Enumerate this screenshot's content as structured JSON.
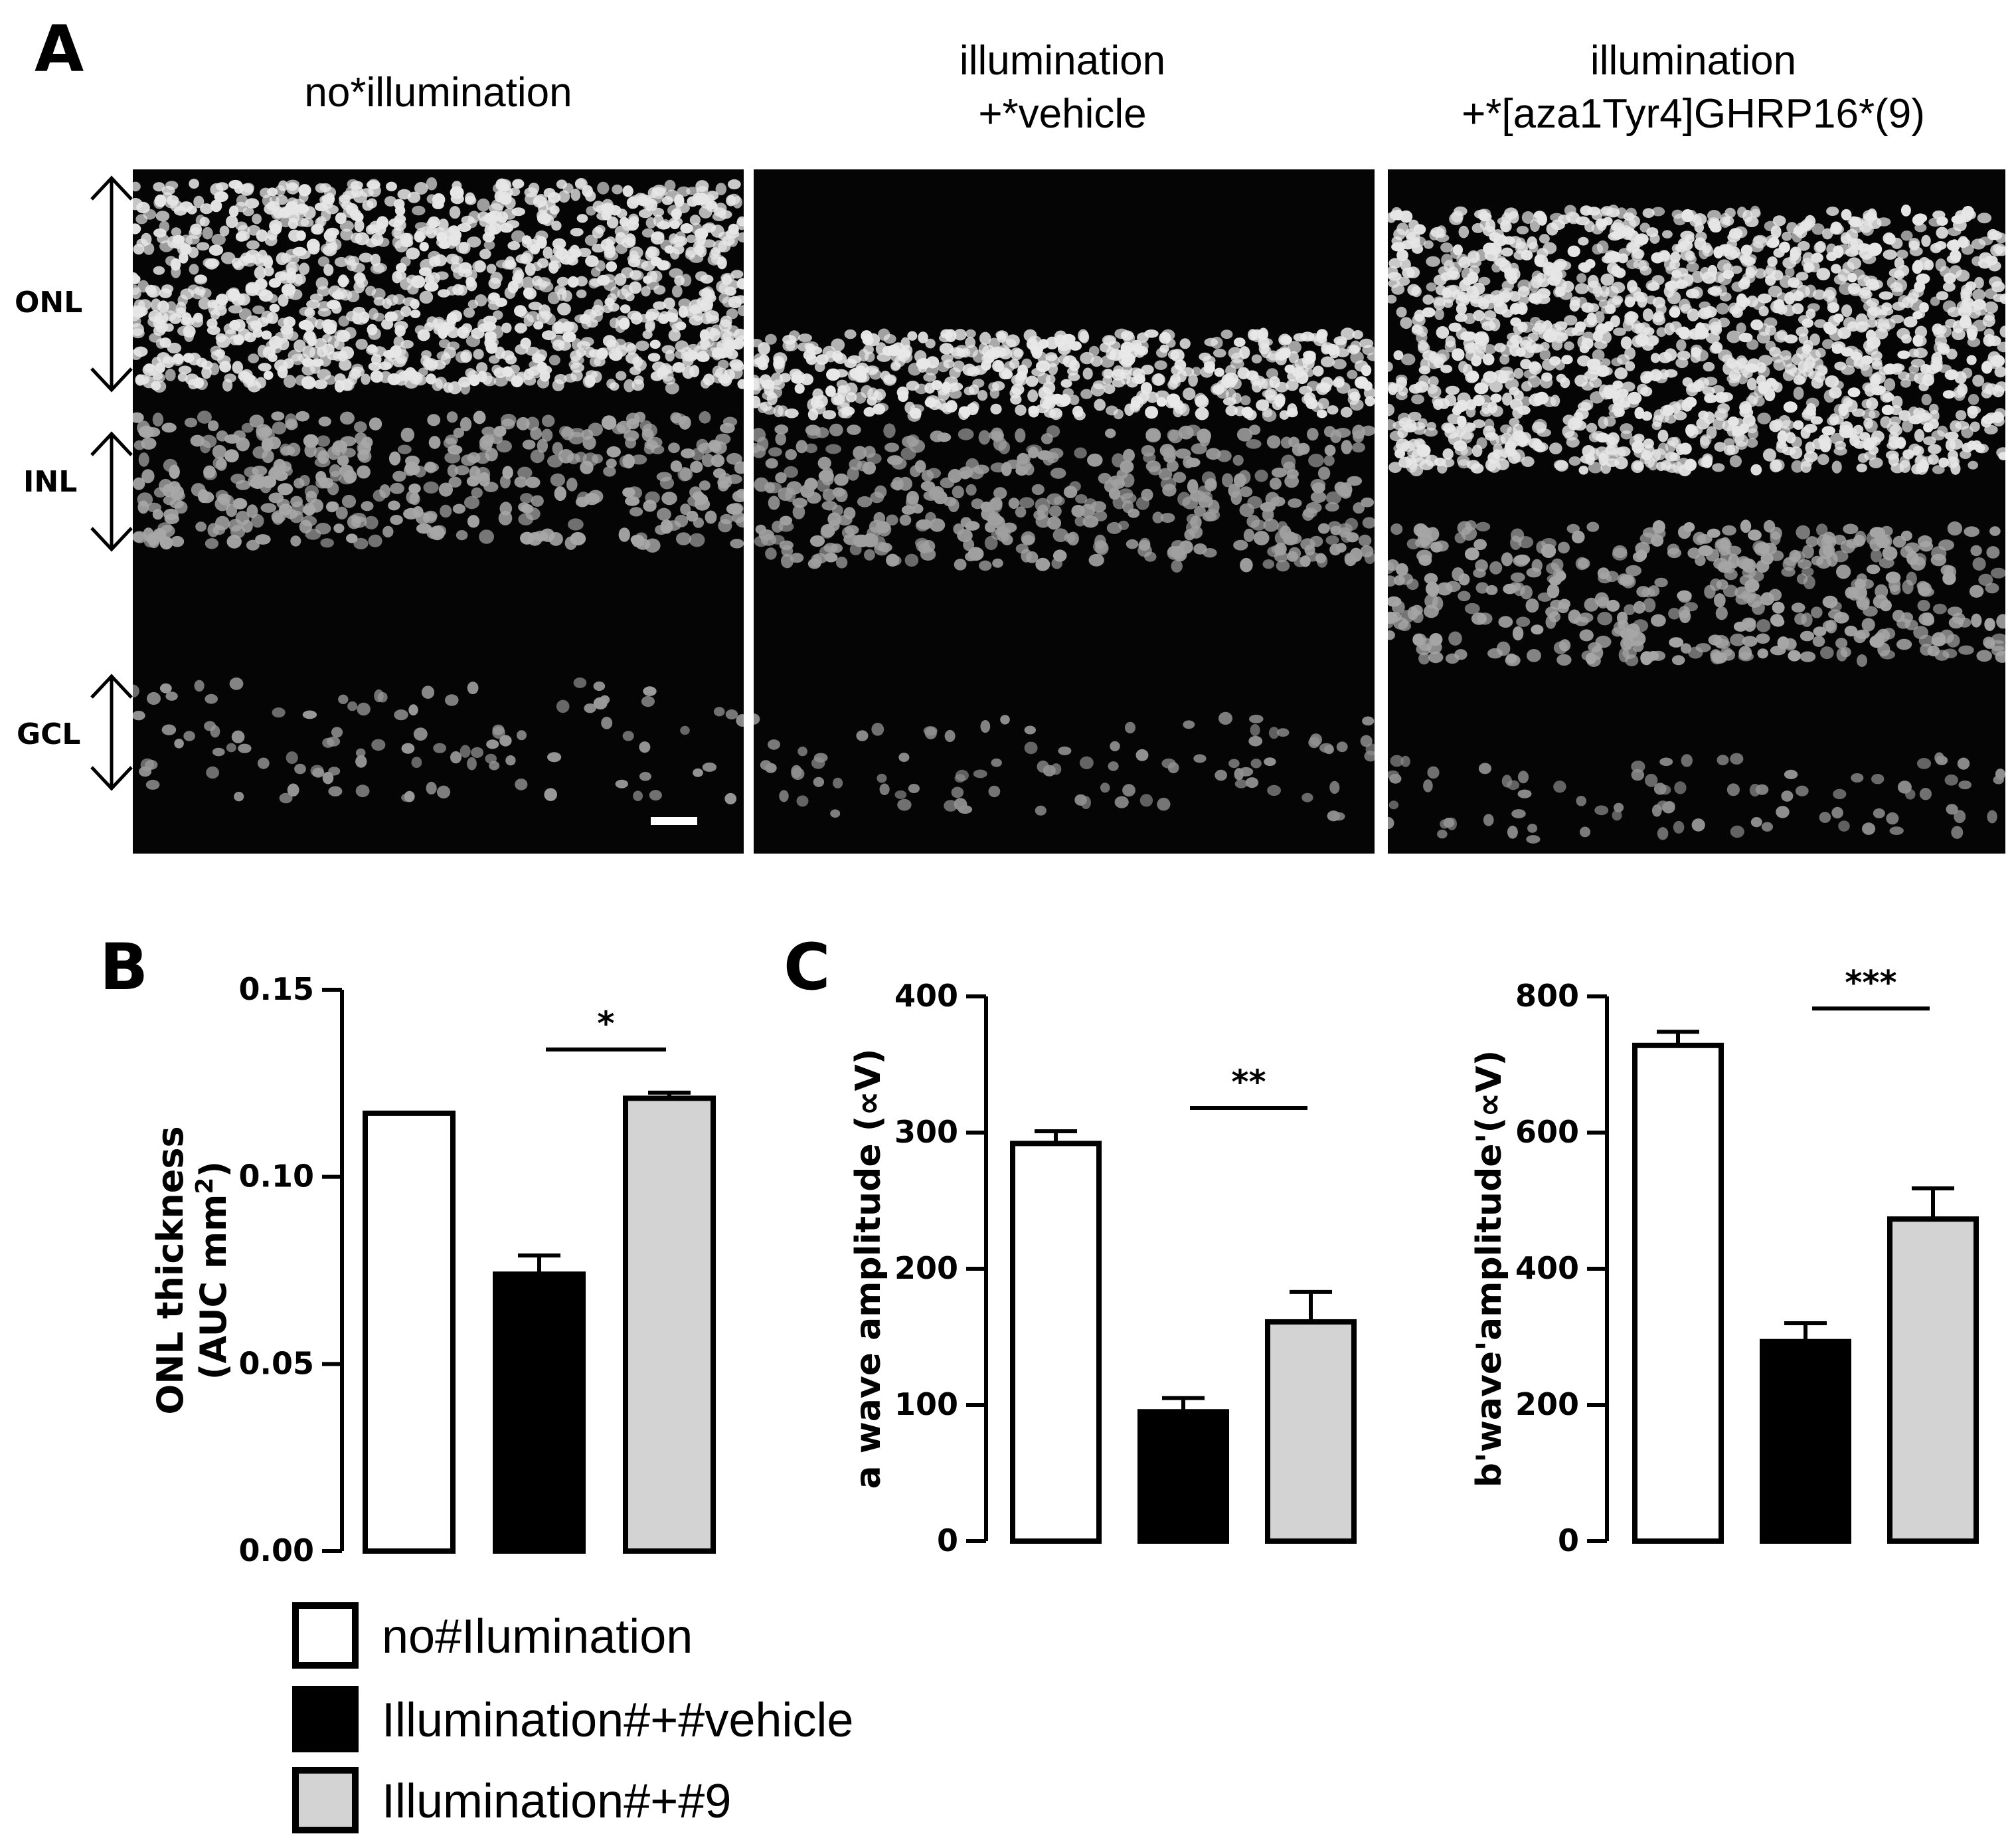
{
  "panel_a": {
    "letter": "A",
    "images": [
      {
        "title_line1": "no*illumination",
        "title_line2": ""
      },
      {
        "title_line1": "illumination",
        "title_line2": "+*vehicle"
      },
      {
        "title_line1": "illumination",
        "title_line2": "+*[aza1Tyr4]GHRP16*(9)"
      }
    ],
    "layer_labels": {
      "onl": "ONL",
      "inl": "INL",
      "gcl": "GCL"
    }
  },
  "panel_b": {
    "letter": "B"
  },
  "panel_c": {
    "letter": "C"
  },
  "legend": [
    {
      "label": "no#Ilumination",
      "color": "#ffffff"
    },
    {
      "label": "Illumination#+#vehicle",
      "color": "#000000"
    },
    {
      "label": "Illumination#+#9",
      "color": "#d3d3d3"
    }
  ],
  "chart_data": [
    {
      "type": "bar",
      "categories": [
        "no#Ilumination",
        "Illumination#+#vehicle",
        "Illumination#+#9"
      ],
      "values": [
        0.117,
        0.074,
        0.121
      ],
      "errors": [
        0.0,
        0.005,
        0.0015
      ],
      "colors": [
        "#ffffff",
        "#000000",
        "#d3d3d3"
      ],
      "ylabel_line1": "ONL thickness",
      "ylabel_line2": "(AUC mm",
      "ylabel_sup": "2",
      "ylabel_close": ")",
      "ylim": [
        0,
        0.15
      ],
      "yticks": [
        0,
        0.05,
        0.1,
        0.15
      ],
      "ytick_labels": [
        "0.00",
        "0.05",
        "0.10",
        "0.15"
      ],
      "significance": [
        {
          "from": 1,
          "to": 2,
          "label": "*"
        }
      ]
    },
    {
      "type": "bar",
      "categories": [
        "no#Ilumination",
        "Illumination#+#vehicle",
        "Illumination#+#9"
      ],
      "values": [
        292,
        95,
        161
      ],
      "errors": [
        9,
        10,
        22
      ],
      "colors": [
        "#ffffff",
        "#000000",
        "#d3d3d3"
      ],
      "ylabel": "a wave amplitude (∝V)",
      "ylim": [
        0,
        400
      ],
      "yticks": [
        0,
        100,
        200,
        300,
        400
      ],
      "ytick_labels": [
        "0",
        "100",
        "200",
        "300",
        "400"
      ],
      "significance": [
        {
          "from": 1,
          "to": 2,
          "label": "**"
        }
      ]
    },
    {
      "type": "bar",
      "categories": [
        "no#Ilumination",
        "Illumination#+#vehicle",
        "Illumination#+#9"
      ],
      "values": [
        728,
        293,
        473
      ],
      "errors": [
        20,
        27,
        45
      ],
      "colors": [
        "#ffffff",
        "#000000",
        "#d3d3d3"
      ],
      "ylabel": "b'wave'amplitude'(∝V)",
      "ylim": [
        0,
        800
      ],
      "yticks": [
        0,
        200,
        400,
        600,
        800
      ],
      "ytick_labels": [
        "0",
        "200",
        "400",
        "600",
        "800"
      ],
      "significance": [
        {
          "from": 1,
          "to": 2,
          "label": "***"
        }
      ]
    }
  ]
}
